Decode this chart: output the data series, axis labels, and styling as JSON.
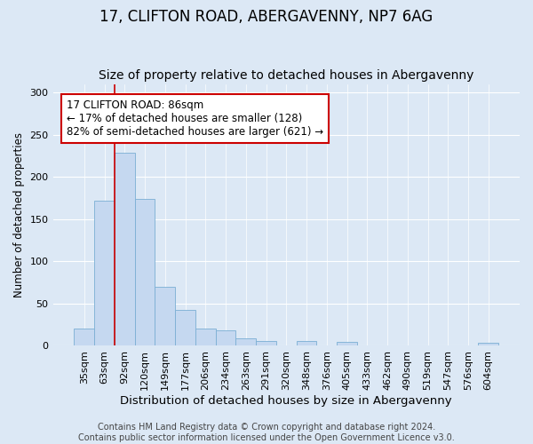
{
  "title": "17, CLIFTON ROAD, ABERGAVENNY, NP7 6AG",
  "subtitle": "Size of property relative to detached houses in Abergavenny",
  "xlabel": "Distribution of detached houses by size in Abergavenny",
  "ylabel": "Number of detached properties",
  "categories": [
    "35sqm",
    "63sqm",
    "92sqm",
    "120sqm",
    "149sqm",
    "177sqm",
    "206sqm",
    "234sqm",
    "263sqm",
    "291sqm",
    "320sqm",
    "348sqm",
    "376sqm",
    "405sqm",
    "433sqm",
    "462sqm",
    "490sqm",
    "519sqm",
    "547sqm",
    "576sqm",
    "604sqm"
  ],
  "values": [
    20,
    172,
    228,
    174,
    70,
    42,
    20,
    18,
    8,
    5,
    0,
    5,
    0,
    4,
    0,
    0,
    0,
    0,
    0,
    0,
    3
  ],
  "bar_color": "#c5d8f0",
  "bar_edge_color": "#7bafd4",
  "vline_x_index": 2,
  "vline_color": "#cc0000",
  "annotation_text": "17 CLIFTON ROAD: 86sqm\n← 17% of detached houses are smaller (128)\n82% of semi-detached houses are larger (621) →",
  "annotation_box_facecolor": "white",
  "annotation_box_edgecolor": "#cc0000",
  "background_color": "#dce8f5",
  "axes_facecolor": "#dce8f5",
  "footer_text": "Contains HM Land Registry data © Crown copyright and database right 2024.\nContains public sector information licensed under the Open Government Licence v3.0.",
  "ylim": [
    0,
    310
  ],
  "yticks": [
    0,
    50,
    100,
    150,
    200,
    250,
    300
  ],
  "title_fontsize": 12,
  "subtitle_fontsize": 10,
  "xlabel_fontsize": 9.5,
  "ylabel_fontsize": 8.5,
  "tick_fontsize": 8,
  "annotation_fontsize": 8.5,
  "footer_fontsize": 7
}
